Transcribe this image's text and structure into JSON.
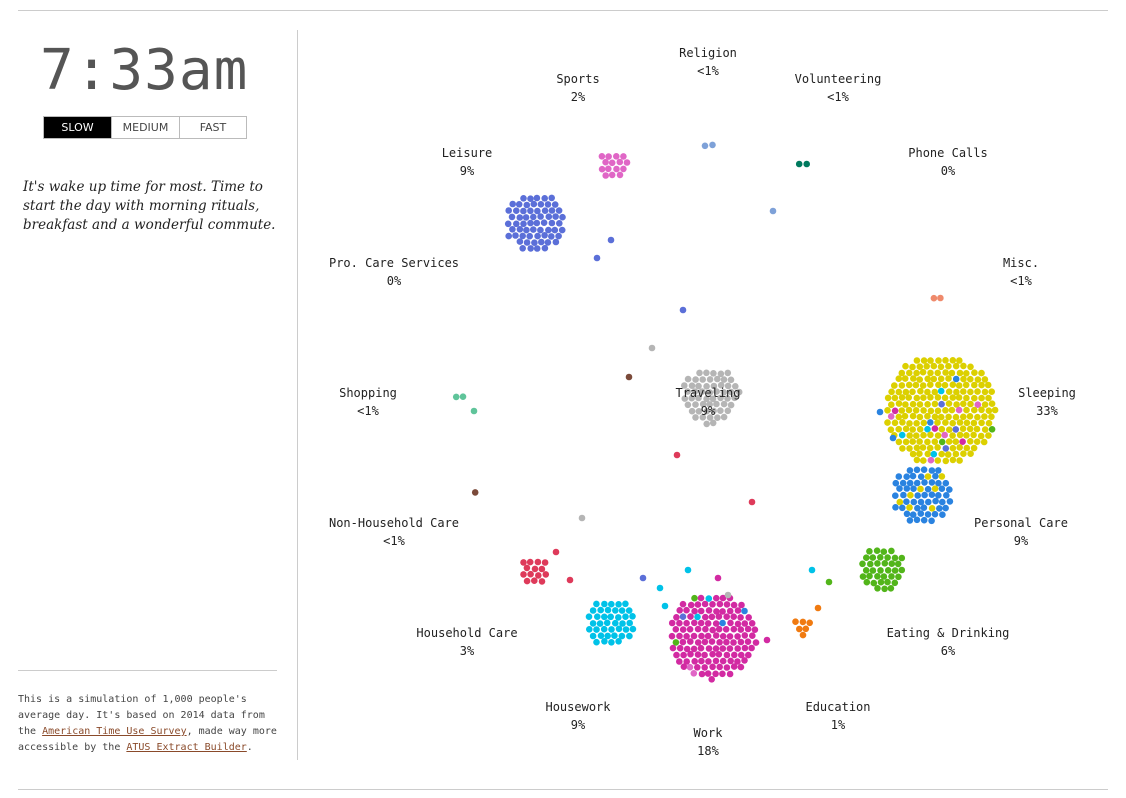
{
  "clock": {
    "time": "7:33am"
  },
  "speed": {
    "options": [
      {
        "label": "SLOW",
        "active": true
      },
      {
        "label": "MEDIUM",
        "active": false
      },
      {
        "label": "FAST",
        "active": false
      }
    ]
  },
  "narrative": "It's wake up time for most. Time to start the day with morning rituals, breakfast and a wonderful commute.",
  "footnote": {
    "text_before": "This is a simulation of 1,000 people's average day. It's based on 2014 data from the ",
    "link1": "American Time Use Survey",
    "text_middle": ", made way more accessible by the ",
    "link2": "ATUS Extract Builder",
    "text_after": "."
  },
  "activities": [
    {
      "id": "religion",
      "name": "Religion",
      "pct": "<1%",
      "color": "#7ea1d8"
    },
    {
      "id": "sports",
      "name": "Sports",
      "pct": "2%",
      "color": "#e066c6"
    },
    {
      "id": "volunteering",
      "name": "Volunteering",
      "pct": "<1%",
      "color": "#007a5e"
    },
    {
      "id": "leisure",
      "name": "Leisure",
      "pct": "9%",
      "color": "#5b6fd8"
    },
    {
      "id": "phone-calls",
      "name": "Phone Calls",
      "pct": "0%",
      "color": "#1a7a4a"
    },
    {
      "id": "pro-care-services",
      "name": "Pro. Care Services",
      "pct": "0%",
      "color": "#888888"
    },
    {
      "id": "misc",
      "name": "Misc.",
      "pct": "<1%",
      "color": "#ef8a6c"
    },
    {
      "id": "shopping",
      "name": "Shopping",
      "pct": "<1%",
      "color": "#5fc49a"
    },
    {
      "id": "traveling",
      "name": "Traveling",
      "pct": "9%",
      "color": "#b5b5b5"
    },
    {
      "id": "sleeping",
      "name": "Sleeping",
      "pct": "33%",
      "color": "#dcd000"
    },
    {
      "id": "non-household-care",
      "name": "Non-Household Care",
      "pct": "<1%",
      "color": "#7b4a3a"
    },
    {
      "id": "personal-care",
      "name": "Personal Care",
      "pct": "9%",
      "color": "#2a83e0"
    },
    {
      "id": "household-care",
      "name": "Household Care",
      "pct": "3%",
      "color": "#00c2e8"
    },
    {
      "id": "eating-drinking",
      "name": "Eating & Drinking",
      "pct": "6%",
      "color": "#52b51a"
    },
    {
      "id": "housework",
      "name": "Housework",
      "pct": "9%",
      "color": "#de3a5a"
    },
    {
      "id": "education",
      "name": "Education",
      "pct": "1%",
      "color": "#f07a10"
    },
    {
      "id": "work",
      "name": "Work",
      "pct": "18%",
      "color": "#d22aa2"
    }
  ]
}
